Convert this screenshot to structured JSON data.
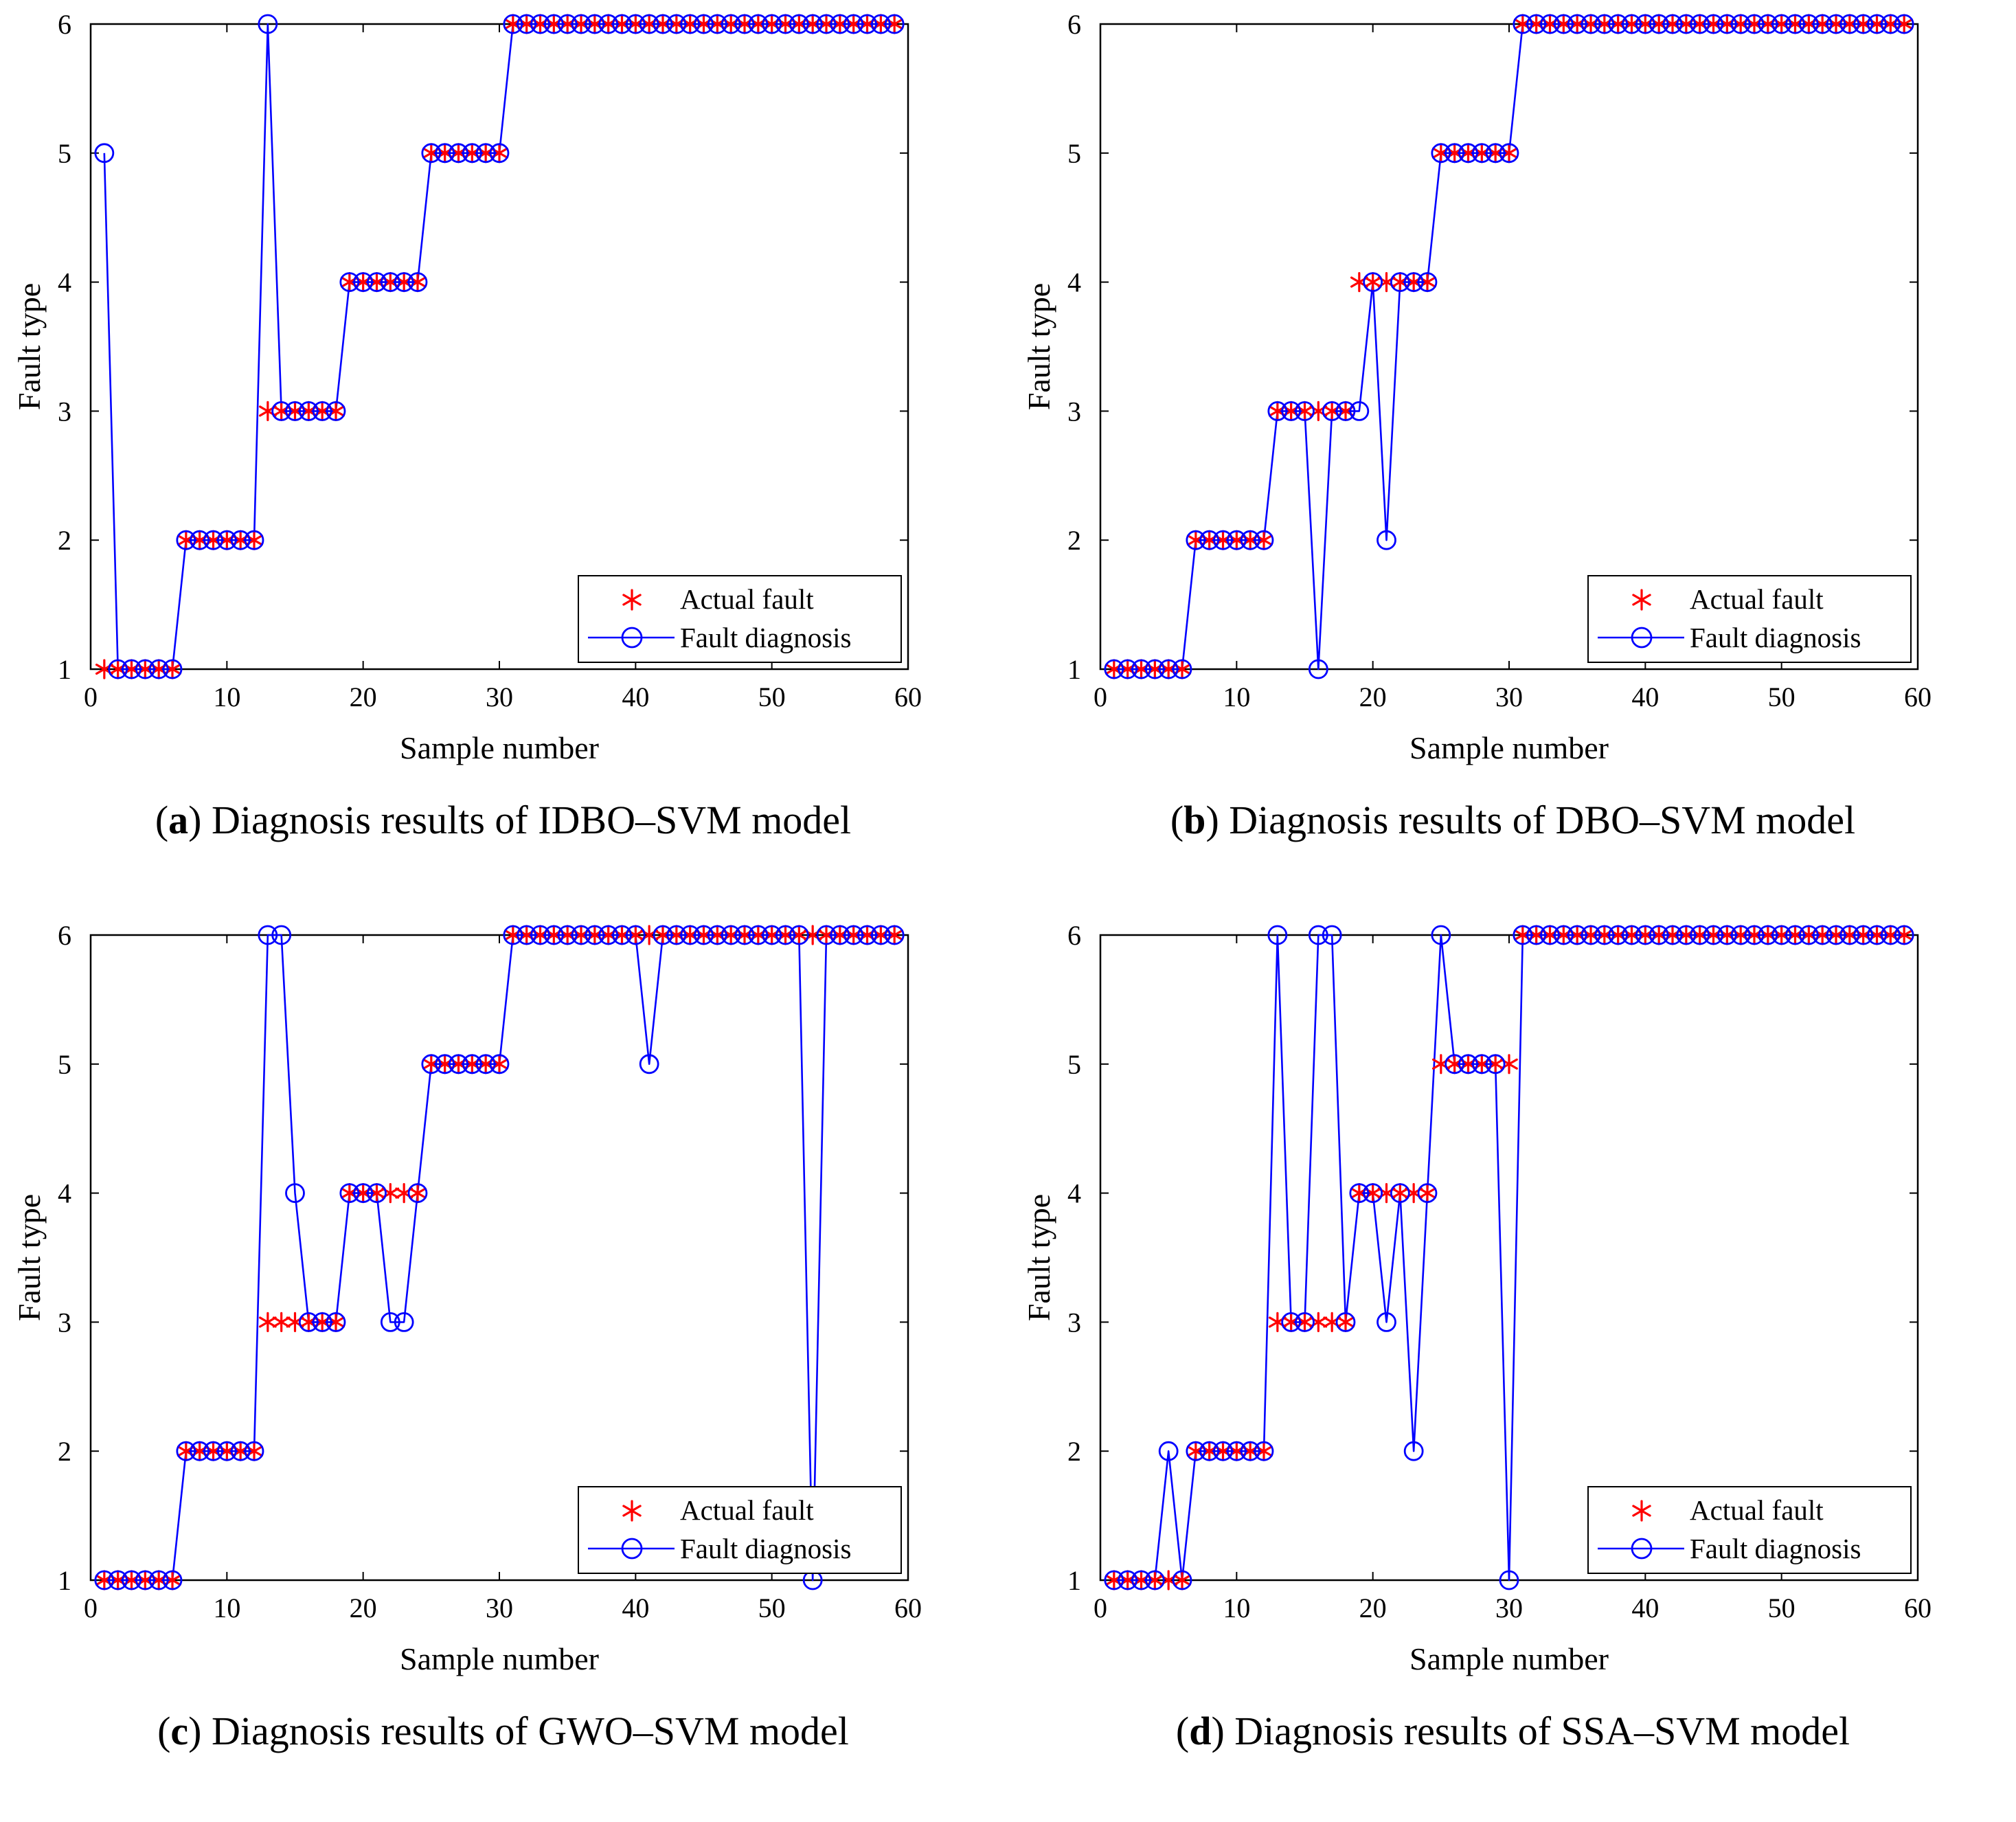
{
  "colors": {
    "actual": "#ff0000",
    "diagnosis": "#0000ff",
    "axis": "#000000",
    "background": "#ffffff"
  },
  "chart_data": [
    {
      "type": "line",
      "panel_letter": "a",
      "title": "Diagnosis results of IDBO–SVM model",
      "xlabel": "Sample number",
      "ylabel": "Fault type",
      "xlim": [
        0,
        60
      ],
      "ylim": [
        1,
        6
      ],
      "xticks": [
        0,
        10,
        20,
        30,
        40,
        50,
        60
      ],
      "yticks": [
        1,
        2,
        3,
        4,
        5,
        6
      ],
      "legend_position": "bottom-right",
      "series": [
        {
          "name": "Actual fault",
          "marker": "asterisk",
          "line": false,
          "values": [
            1,
            1,
            1,
            1,
            1,
            1,
            2,
            2,
            2,
            2,
            2,
            2,
            3,
            3,
            3,
            3,
            3,
            3,
            4,
            4,
            4,
            4,
            4,
            4,
            5,
            5,
            5,
            5,
            5,
            5,
            6,
            6,
            6,
            6,
            6,
            6,
            6,
            6,
            6,
            6,
            6,
            6,
            6,
            6,
            6,
            6,
            6,
            6,
            6,
            6,
            6,
            6,
            6,
            6,
            6,
            6,
            6,
            6,
            6
          ]
        },
        {
          "name": "Fault diagnosis",
          "marker": "circle",
          "line": true,
          "values": [
            5,
            1,
            1,
            1,
            1,
            1,
            2,
            2,
            2,
            2,
            2,
            2,
            6,
            3,
            3,
            3,
            3,
            3,
            4,
            4,
            4,
            4,
            4,
            4,
            5,
            5,
            5,
            5,
            5,
            5,
            6,
            6,
            6,
            6,
            6,
            6,
            6,
            6,
            6,
            6,
            6,
            6,
            6,
            6,
            6,
            6,
            6,
            6,
            6,
            6,
            6,
            6,
            6,
            6,
            6,
            6,
            6,
            6,
            6
          ]
        }
      ]
    },
    {
      "type": "line",
      "panel_letter": "b",
      "title": "Diagnosis results of DBO–SVM model",
      "xlabel": "Sample number",
      "ylabel": "Fault type",
      "xlim": [
        0,
        60
      ],
      "ylim": [
        1,
        6
      ],
      "xticks": [
        0,
        10,
        20,
        30,
        40,
        50,
        60
      ],
      "yticks": [
        1,
        2,
        3,
        4,
        5,
        6
      ],
      "legend_position": "bottom-right",
      "series": [
        {
          "name": "Actual fault",
          "marker": "asterisk",
          "line": false,
          "values": [
            1,
            1,
            1,
            1,
            1,
            1,
            2,
            2,
            2,
            2,
            2,
            2,
            3,
            3,
            3,
            3,
            3,
            3,
            4,
            4,
            4,
            4,
            4,
            4,
            5,
            5,
            5,
            5,
            5,
            5,
            6,
            6,
            6,
            6,
            6,
            6,
            6,
            6,
            6,
            6,
            6,
            6,
            6,
            6,
            6,
            6,
            6,
            6,
            6,
            6,
            6,
            6,
            6,
            6,
            6,
            6,
            6,
            6,
            6
          ]
        },
        {
          "name": "Fault diagnosis",
          "marker": "circle",
          "line": true,
          "values": [
            1,
            1,
            1,
            1,
            1,
            1,
            2,
            2,
            2,
            2,
            2,
            2,
            3,
            3,
            3,
            1,
            3,
            3,
            3,
            4,
            2,
            4,
            4,
            4,
            5,
            5,
            5,
            5,
            5,
            5,
            6,
            6,
            6,
            6,
            6,
            6,
            6,
            6,
            6,
            6,
            6,
            6,
            6,
            6,
            6,
            6,
            6,
            6,
            6,
            6,
            6,
            6,
            6,
            6,
            6,
            6,
            6,
            6,
            6
          ]
        }
      ]
    },
    {
      "type": "line",
      "panel_letter": "c",
      "title": "Diagnosis results of GWO–SVM model",
      "xlabel": "Sample number",
      "ylabel": "Fault type",
      "xlim": [
        0,
        60
      ],
      "ylim": [
        1,
        6
      ],
      "xticks": [
        0,
        10,
        20,
        30,
        40,
        50,
        60
      ],
      "yticks": [
        1,
        2,
        3,
        4,
        5,
        6
      ],
      "legend_position": "bottom-right",
      "series": [
        {
          "name": "Actual fault",
          "marker": "asterisk",
          "line": false,
          "values": [
            1,
            1,
            1,
            1,
            1,
            1,
            2,
            2,
            2,
            2,
            2,
            2,
            3,
            3,
            3,
            3,
            3,
            3,
            4,
            4,
            4,
            4,
            4,
            4,
            5,
            5,
            5,
            5,
            5,
            5,
            6,
            6,
            6,
            6,
            6,
            6,
            6,
            6,
            6,
            6,
            6,
            6,
            6,
            6,
            6,
            6,
            6,
            6,
            6,
            6,
            6,
            6,
            6,
            6,
            6,
            6,
            6,
            6,
            6
          ]
        },
        {
          "name": "Fault diagnosis",
          "marker": "circle",
          "line": true,
          "values": [
            1,
            1,
            1,
            1,
            1,
            1,
            2,
            2,
            2,
            2,
            2,
            2,
            6,
            6,
            4,
            3,
            3,
            3,
            4,
            4,
            4,
            3,
            3,
            4,
            5,
            5,
            5,
            5,
            5,
            5,
            6,
            6,
            6,
            6,
            6,
            6,
            6,
            6,
            6,
            6,
            5,
            6,
            6,
            6,
            6,
            6,
            6,
            6,
            6,
            6,
            6,
            6,
            1,
            6,
            6,
            6,
            6,
            6,
            6
          ]
        }
      ]
    },
    {
      "type": "line",
      "panel_letter": "d",
      "title": "Diagnosis results of SSA–SVM model",
      "xlabel": "Sample number",
      "ylabel": "Fault type",
      "xlim": [
        0,
        60
      ],
      "ylim": [
        1,
        6
      ],
      "xticks": [
        0,
        10,
        20,
        30,
        40,
        50,
        60
      ],
      "yticks": [
        1,
        2,
        3,
        4,
        5,
        6
      ],
      "legend_position": "bottom-right",
      "series": [
        {
          "name": "Actual fault",
          "marker": "asterisk",
          "line": false,
          "values": [
            1,
            1,
            1,
            1,
            1,
            1,
            2,
            2,
            2,
            2,
            2,
            2,
            3,
            3,
            3,
            3,
            3,
            3,
            4,
            4,
            4,
            4,
            4,
            4,
            5,
            5,
            5,
            5,
            5,
            5,
            6,
            6,
            6,
            6,
            6,
            6,
            6,
            6,
            6,
            6,
            6,
            6,
            6,
            6,
            6,
            6,
            6,
            6,
            6,
            6,
            6,
            6,
            6,
            6,
            6,
            6,
            6,
            6,
            6
          ]
        },
        {
          "name": "Fault diagnosis",
          "marker": "circle",
          "line": true,
          "values": [
            1,
            1,
            1,
            1,
            2,
            1,
            2,
            2,
            2,
            2,
            2,
            2,
            6,
            3,
            3,
            6,
            6,
            3,
            4,
            4,
            3,
            4,
            2,
            4,
            6,
            5,
            5,
            5,
            5,
            1,
            6,
            6,
            6,
            6,
            6,
            6,
            6,
            6,
            6,
            6,
            6,
            6,
            6,
            6,
            6,
            6,
            6,
            6,
            6,
            6,
            6,
            6,
            6,
            6,
            6,
            6,
            6,
            6,
            6
          ]
        }
      ]
    }
  ]
}
